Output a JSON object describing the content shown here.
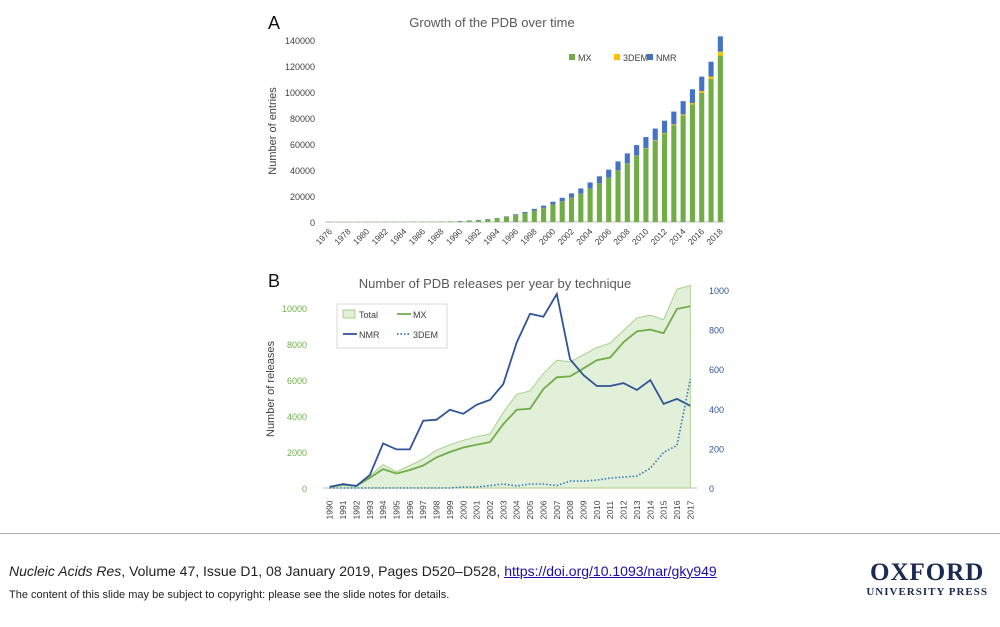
{
  "panels": {
    "a": "A",
    "b": "B"
  },
  "chart_data": [
    {
      "type": "bar",
      "stacked": true,
      "title": "Growth of the PDB over time",
      "xlabel": "",
      "ylabel": "Number of entries",
      "ylim": [
        0,
        140000
      ],
      "yticks": [
        0,
        20000,
        40000,
        60000,
        80000,
        100000,
        120000,
        140000
      ],
      "xtick_labels": [
        "1976",
        "1978",
        "1980",
        "1982",
        "1984",
        "1986",
        "1988",
        "1990",
        "1992",
        "1994",
        "1996",
        "1998",
        "2000",
        "2002",
        "2004",
        "2006",
        "2008",
        "2010",
        "2012",
        "2014",
        "2016",
        "2018"
      ],
      "categories": [
        "1976",
        "1977",
        "1978",
        "1979",
        "1980",
        "1981",
        "1982",
        "1983",
        "1984",
        "1985",
        "1986",
        "1987",
        "1988",
        "1989",
        "1990",
        "1991",
        "1992",
        "1993",
        "1994",
        "1995",
        "1996",
        "1997",
        "1998",
        "1999",
        "2000",
        "2001",
        "2002",
        "2003",
        "2004",
        "2005",
        "2006",
        "2007",
        "2008",
        "2009",
        "2010",
        "2011",
        "2012",
        "2013",
        "2014",
        "2015",
        "2016",
        "2017",
        "2018"
      ],
      "legend_position": "top-right",
      "series": [
        {
          "name": "MX",
          "color": "#70ad47",
          "values": [
            13,
            23,
            38,
            57,
            69,
            80,
            120,
            152,
            196,
            236,
            283,
            338,
            400,
            500,
            690,
            1000,
            1400,
            2100,
            2900,
            3900,
            5300,
            6800,
            8800,
            10900,
            13400,
            15900,
            18700,
            21800,
            25700,
            29700,
            34000,
            39500,
            45000,
            50800,
            56500,
            62500,
            68000,
            74500,
            82000,
            90500,
            99500,
            110000,
            128000
          ]
        },
        {
          "name": "3DEM",
          "color": "#ffc000",
          "values": [
            0,
            0,
            0,
            0,
            0,
            0,
            0,
            0,
            0,
            0,
            0,
            0,
            0,
            0,
            0,
            0,
            0,
            0,
            0,
            0,
            0,
            0,
            0,
            2,
            3,
            5,
            8,
            12,
            20,
            40,
            80,
            120,
            180,
            250,
            330,
            420,
            520,
            640,
            780,
            1000,
            1300,
            1900,
            3000
          ]
        },
        {
          "name": "NMR",
          "color": "#4472c4",
          "values": [
            0,
            0,
            0,
            0,
            0,
            0,
            0,
            0,
            0,
            0,
            0,
            0,
            0,
            0,
            8,
            20,
            40,
            80,
            200,
            400,
            620,
            900,
            1300,
            1700,
            2200,
            2700,
            3300,
            4000,
            4700,
            5400,
            6200,
            7000,
            7600,
            8100,
            8500,
            8950,
            9400,
            9800,
            10200,
            10600,
            11000,
            11400,
            11800
          ]
        }
      ]
    },
    {
      "type": "line",
      "title": "Number of PDB releases per year by technique",
      "xlabel": "",
      "ylabel": "Number of releases",
      "x": [
        "1990",
        "1991",
        "1992",
        "1993",
        "1994",
        "1995",
        "1996",
        "1997",
        "1998",
        "1999",
        "2000",
        "2001",
        "2002",
        "2003",
        "2004",
        "2005",
        "2006",
        "2007",
        "2008",
        "2009",
        "2010",
        "2011",
        "2012",
        "2013",
        "2014",
        "2015",
        "2016",
        "2017"
      ],
      "ylim_left": [
        0,
        11000
      ],
      "yticks_left": [
        0,
        2000,
        4000,
        6000,
        8000,
        10000
      ],
      "ylim_right": [
        0,
        1000
      ],
      "yticks_right": [
        0,
        200,
        400,
        600,
        800,
        1000
      ],
      "legend_position": "top-left",
      "series": [
        {
          "name": "Total",
          "type": "area",
          "axis": "left",
          "color": "#70ad47",
          "values": [
            80,
            200,
            150,
            650,
            1300,
            900,
            1250,
            1600,
            2100,
            2400,
            2650,
            2850,
            3000,
            4200,
            5200,
            5400,
            6350,
            7100,
            7000,
            7400,
            7800,
            8050,
            8750,
            9450,
            9600,
            9350,
            11050,
            11250
          ]
        },
        {
          "name": "MX",
          "type": "line",
          "axis": "left",
          "color": "#70ad47",
          "values": [
            70,
            180,
            120,
            560,
            1050,
            800,
            1000,
            1250,
            1700,
            2000,
            2250,
            2400,
            2550,
            3550,
            4350,
            4400,
            5500,
            6150,
            6200,
            6650,
            7100,
            7250,
            8100,
            8700,
            8800,
            8600,
            9950,
            10100
          ]
        },
        {
          "name": "NMR",
          "type": "line",
          "axis": "right",
          "color": "#2f5597",
          "values": [
            5,
            20,
            10,
            65,
            225,
            195,
            195,
            340,
            345,
            395,
            375,
            420,
            445,
            525,
            735,
            880,
            865,
            980,
            650,
            570,
            515,
            515,
            530,
            495,
            545,
            425,
            450,
            415
          ]
        },
        {
          "name": "3DEM",
          "type": "dotted",
          "axis": "right",
          "color": "#2e75b6",
          "values": [
            0,
            0,
            0,
            0,
            0,
            0,
            0,
            0,
            0,
            0,
            5,
            5,
            12,
            20,
            10,
            20,
            20,
            12,
            35,
            35,
            40,
            50,
            55,
            60,
            100,
            180,
            215,
            550
          ]
        }
      ]
    }
  ],
  "footer": {
    "journal": "Nucleic Acids Res",
    "details": ", Volume 47, Issue D1, 08 January 2019, Pages D520–D528, ",
    "doi": "https://doi.org/10.1093/nar/gky949",
    "notice": "The content of this slide may be subject to copyright: please see the slide notes for details.",
    "publisher": "OXFORD",
    "publisher_sub": "UNIVERSITY PRESS"
  }
}
